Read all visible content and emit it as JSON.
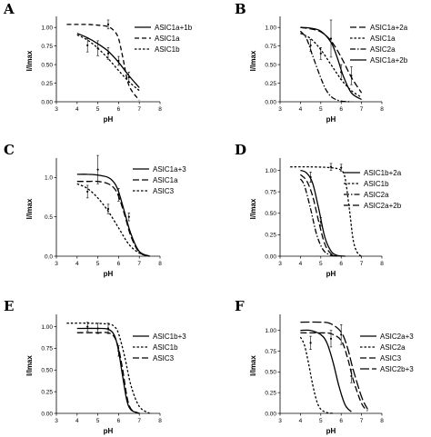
{
  "chart_data": [
    {
      "type": "line",
      "letter": "A",
      "xlabel": "pH",
      "ylabel": "I/Imax",
      "xlim": [
        3,
        8
      ],
      "ylim": [
        0,
        1.1
      ],
      "xticks": [
        "3",
        "4",
        "5",
        "6",
        "7",
        "8"
      ],
      "yticks": [
        "0.00",
        "0.25",
        "0.50",
        "0.75",
        "1.00"
      ],
      "legend_position": "top-right",
      "series": [
        {
          "name": "ASIC1a+1b",
          "dash": "solid",
          "x": [
            4.0,
            4.5,
            5.0,
            5.5,
            6.0,
            6.5,
            7.0
          ],
          "y": [
            0.92,
            0.86,
            0.78,
            0.68,
            0.53,
            0.35,
            0.19
          ]
        },
        {
          "name": "ASIC1a",
          "dash": "medium",
          "x": [
            3.5,
            4.0,
            4.5,
            5.0,
            5.5,
            5.8,
            6.0,
            6.2,
            6.5,
            7.0
          ],
          "y": [
            1.04,
            1.04,
            1.04,
            1.03,
            1.01,
            0.95,
            0.85,
            0.6,
            0.22,
            0.02
          ]
        },
        {
          "name": "ASIC1b",
          "dash": "short",
          "x": [
            4.0,
            4.5,
            5.0,
            5.5,
            6.0,
            6.5,
            7.0
          ],
          "y": [
            0.9,
            0.83,
            0.72,
            0.58,
            0.42,
            0.27,
            0.15
          ]
        }
      ],
      "errorbars": [
        {
          "x": 4.5,
          "y": 0.76,
          "err": 0.09
        },
        {
          "x": 5.0,
          "y": 0.72,
          "err": 0.1
        },
        {
          "x": 5.5,
          "y": 0.65,
          "err": 0.08
        },
        {
          "x": 5.5,
          "y": 1.04,
          "err": 0.06
        },
        {
          "x": 6.5,
          "y": 0.33,
          "err": 0.07
        },
        {
          "x": 6.0,
          "y": 0.55,
          "err": 0.06
        }
      ]
    },
    {
      "type": "line",
      "letter": "B",
      "xlabel": "pH",
      "ylabel": "I/Imax",
      "xlim": [
        3,
        8
      ],
      "ylim": [
        0,
        1.1
      ],
      "xticks": [
        "3",
        "4",
        "5",
        "6",
        "7",
        "8"
      ],
      "yticks": [
        "0.00",
        "0.25",
        "0.50",
        "0.75",
        "1.00"
      ],
      "legend_position": "top-right",
      "series": [
        {
          "name": "ASIC1a+2a",
          "dash": "long",
          "x": [
            4.0,
            4.5,
            5.0,
            5.5,
            6.0,
            6.5,
            7.0
          ],
          "y": [
            1.0,
            0.98,
            0.94,
            0.82,
            0.6,
            0.33,
            0.12
          ]
        },
        {
          "name": "ASIC1a",
          "dash": "short",
          "x": [
            4.0,
            4.5,
            5.0,
            5.5,
            6.0,
            6.5,
            7.0
          ],
          "y": [
            0.92,
            0.85,
            0.7,
            0.5,
            0.3,
            0.15,
            0.06
          ]
        },
        {
          "name": "ASIC2a",
          "dash": "dashdot",
          "x": [
            4.0,
            4.3,
            4.6,
            5.0,
            5.3,
            5.6,
            6.0,
            6.5
          ],
          "y": [
            0.95,
            0.85,
            0.62,
            0.32,
            0.14,
            0.05,
            0.01,
            0.0
          ]
        },
        {
          "name": "ASIC1a+2b",
          "dash": "solid",
          "x": [
            4.0,
            4.5,
            5.0,
            5.5,
            5.8,
            6.1,
            6.5,
            7.0
          ],
          "y": [
            1.0,
            0.99,
            0.95,
            0.8,
            0.6,
            0.35,
            0.12,
            0.03
          ]
        }
      ],
      "errorbars": [
        {
          "x": 4.5,
          "y": 0.76,
          "err": 0.08
        },
        {
          "x": 5.0,
          "y": 0.65,
          "err": 0.08
        },
        {
          "x": 5.5,
          "y": 0.85,
          "err": 0.25
        },
        {
          "x": 6.0,
          "y": 0.4,
          "err": 0.1
        },
        {
          "x": 6.5,
          "y": 0.35,
          "err": 0.12
        }
      ]
    },
    {
      "type": "line",
      "letter": "C",
      "xlabel": "pH",
      "ylabel": "I/Imax",
      "xlim": [
        3,
        8
      ],
      "ylim": [
        0,
        1.2
      ],
      "xticks": [
        "3",
        "4",
        "5",
        "6",
        "7",
        "8"
      ],
      "yticks": [
        "0.0",
        "0.5",
        "1.0"
      ],
      "legend_position": "top-right",
      "series": [
        {
          "name": "ASIC1a+3",
          "dash": "solid",
          "x": [
            4.0,
            4.5,
            5.0,
            5.5,
            5.8,
            6.0,
            6.3,
            6.6,
            7.0,
            7.5
          ],
          "y": [
            1.04,
            1.04,
            1.03,
            1.0,
            0.93,
            0.82,
            0.55,
            0.28,
            0.06,
            0.0
          ]
        },
        {
          "name": "ASIC1a",
          "dash": "long",
          "x": [
            4.0,
            4.5,
            5.0,
            5.5,
            5.8,
            6.0,
            6.3,
            6.6,
            7.0,
            7.5
          ],
          "y": [
            0.95,
            0.95,
            0.95,
            0.92,
            0.86,
            0.76,
            0.52,
            0.25,
            0.05,
            0.0
          ]
        },
        {
          "name": "ASIC3",
          "dash": "short",
          "x": [
            4.0,
            4.5,
            5.0,
            5.5,
            6.0,
            6.5,
            7.0,
            7.5
          ],
          "y": [
            0.92,
            0.86,
            0.74,
            0.57,
            0.36,
            0.15,
            0.04,
            0.0
          ]
        }
      ],
      "errorbars": [
        {
          "x": 5.0,
          "y": 1.1,
          "err": 0.18
        },
        {
          "x": 4.5,
          "y": 0.82,
          "err": 0.08
        },
        {
          "x": 5.5,
          "y": 0.6,
          "err": 0.06
        },
        {
          "x": 6.0,
          "y": 0.78,
          "err": 0.08
        },
        {
          "x": 6.5,
          "y": 0.5,
          "err": 0.05
        }
      ]
    },
    {
      "type": "line",
      "letter": "D",
      "xlabel": "pH",
      "ylabel": "I/Imax",
      "xlim": [
        3,
        8
      ],
      "ylim": [
        0,
        1.1
      ],
      "xticks": [
        "3",
        "4",
        "5",
        "6",
        "7",
        "8"
      ],
      "yticks": [
        "0.00",
        "0.25",
        "0.50",
        "0.75",
        "1.00"
      ],
      "legend_position": "top-right",
      "series": [
        {
          "name": "ASIC1b+2a",
          "dash": "solid",
          "x": [
            4.0,
            4.3,
            4.6,
            4.9,
            5.2,
            5.5,
            5.8,
            6.2
          ],
          "y": [
            1.0,
            0.97,
            0.85,
            0.55,
            0.22,
            0.06,
            0.01,
            0.0
          ]
        },
        {
          "name": "ASIC1b",
          "dash": "short",
          "x": [
            3.5,
            4.5,
            5.5,
            6.0,
            6.2,
            6.4,
            6.6,
            6.8,
            7.0
          ],
          "y": [
            1.04,
            1.04,
            1.03,
            1.0,
            0.9,
            0.55,
            0.18,
            0.04,
            0.0
          ]
        },
        {
          "name": "ASIC2a",
          "dash": "dashdot",
          "x": [
            4.0,
            4.2,
            4.5,
            4.8,
            5.1,
            5.4,
            5.8
          ],
          "y": [
            0.9,
            0.82,
            0.55,
            0.25,
            0.08,
            0.02,
            0.0
          ]
        },
        {
          "name": "ASIC2a+2b",
          "dash": "long",
          "x": [
            4.0,
            4.3,
            4.6,
            4.9,
            5.2,
            5.5,
            5.8
          ],
          "y": [
            0.95,
            0.88,
            0.7,
            0.4,
            0.14,
            0.03,
            0.0
          ]
        }
      ],
      "errorbars": [
        {
          "x": 4.5,
          "y": 0.92,
          "err": 0.06
        },
        {
          "x": 5.0,
          "y": 0.4,
          "err": 0.05
        },
        {
          "x": 5.5,
          "y": 1.04,
          "err": 0.04
        },
        {
          "x": 6.0,
          "y": 1.03,
          "err": 0.04
        }
      ]
    },
    {
      "type": "line",
      "letter": "E",
      "xlabel": "pH",
      "ylabel": "I/Imax",
      "xlim": [
        3,
        8
      ],
      "ylim": [
        0,
        1.1
      ],
      "xticks": [
        "3",
        "4",
        "5",
        "6",
        "7",
        "8"
      ],
      "yticks": [
        "0.00",
        "0.25",
        "0.50",
        "0.75",
        "1.00"
      ],
      "legend_position": "top-right",
      "series": [
        {
          "name": "ASIC1b+3",
          "dash": "solid",
          "x": [
            4.0,
            5.0,
            5.5,
            5.8,
            6.0,
            6.2,
            6.4,
            6.6,
            7.0
          ],
          "y": [
            0.98,
            0.98,
            0.97,
            0.9,
            0.72,
            0.42,
            0.15,
            0.04,
            0.0
          ]
        },
        {
          "name": "ASIC1b",
          "dash": "short",
          "x": [
            3.5,
            4.5,
            5.5,
            5.8,
            6.0,
            6.3,
            6.6,
            7.0,
            7.5
          ],
          "y": [
            1.04,
            1.04,
            1.03,
            1.0,
            0.92,
            0.65,
            0.32,
            0.08,
            0.0
          ]
        },
        {
          "name": "ASIC3",
          "dash": "long",
          "x": [
            4.0,
            5.0,
            5.5,
            5.8,
            6.0,
            6.2,
            6.4,
            6.6,
            7.0
          ],
          "y": [
            0.93,
            0.93,
            0.93,
            0.88,
            0.75,
            0.5,
            0.2,
            0.05,
            0.0
          ]
        }
      ],
      "errorbars": [
        {
          "x": 4.5,
          "y": 1.0,
          "err": 0.05
        },
        {
          "x": 5.0,
          "y": 0.98,
          "err": 0.06
        },
        {
          "x": 5.5,
          "y": 0.98,
          "err": 0.06
        },
        {
          "x": 6.0,
          "y": 0.72,
          "err": 0.06
        }
      ]
    },
    {
      "type": "line",
      "letter": "F",
      "xlabel": "pH",
      "ylabel": "I/Imax",
      "xlim": [
        3,
        8
      ],
      "ylim": [
        0,
        1.15
      ],
      "xticks": [
        "3",
        "4",
        "5",
        "6",
        "7",
        "8"
      ],
      "yticks": [
        "0.00",
        "0.25",
        "0.50",
        "0.75",
        "1.00"
      ],
      "legend_position": "top-right",
      "series": [
        {
          "name": "ASIC2a+3",
          "dash": "solid",
          "x": [
            4.0,
            4.5,
            5.0,
            5.3,
            5.6,
            5.9,
            6.2,
            6.5
          ],
          "y": [
            1.0,
            1.0,
            0.95,
            0.85,
            0.62,
            0.32,
            0.1,
            0.02
          ]
        },
        {
          "name": "ASIC2a",
          "dash": "short",
          "x": [
            4.0,
            4.2,
            4.4,
            4.6,
            4.8,
            5.0,
            5.3,
            5.6
          ],
          "y": [
            0.92,
            0.82,
            0.6,
            0.35,
            0.15,
            0.05,
            0.01,
            0.0
          ]
        },
        {
          "name": "ASIC3",
          "dash": "long",
          "x": [
            4.0,
            5.0,
            5.5,
            6.0,
            6.3,
            6.6,
            7.0,
            7.3
          ],
          "y": [
            0.97,
            0.97,
            0.96,
            0.88,
            0.68,
            0.4,
            0.12,
            0.03
          ]
        },
        {
          "name": "ASIC2b+3",
          "dash": "longer",
          "x": [
            4.0,
            5.0,
            5.5,
            6.0,
            6.3,
            6.6,
            7.0,
            7.3
          ],
          "y": [
            1.1,
            1.1,
            1.08,
            0.98,
            0.8,
            0.52,
            0.2,
            0.05
          ]
        }
      ],
      "errorbars": [
        {
          "x": 4.5,
          "y": 0.85,
          "err": 0.08
        },
        {
          "x": 5.5,
          "y": 0.9,
          "err": 0.1
        },
        {
          "x": 6.0,
          "y": 0.95,
          "err": 0.12
        },
        {
          "x": 6.5,
          "y": 0.45,
          "err": 0.08
        }
      ]
    }
  ]
}
